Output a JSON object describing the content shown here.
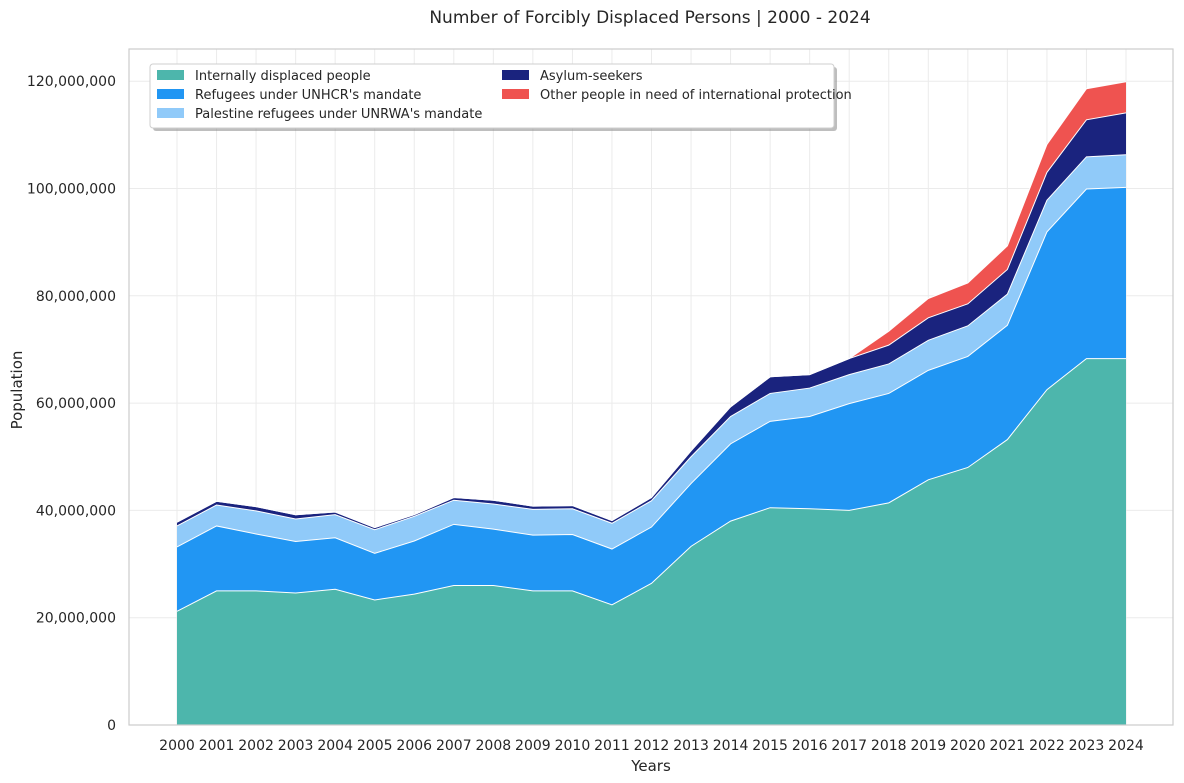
{
  "chart_data": {
    "type": "area",
    "stacked": true,
    "title": "Number of Forcibly Displaced Persons | 2000 - 2024",
    "xlabel": "Years",
    "ylabel": "Population",
    "ylim": [
      0,
      126000000
    ],
    "yticks": [
      0,
      20000000,
      40000000,
      60000000,
      80000000,
      100000000,
      120000000
    ],
    "ytick_labels": [
      "0",
      "20,000,000",
      "40,000,000",
      "60,000,000",
      "80,000,000",
      "100,000,000",
      "120,000,000"
    ],
    "grid": true,
    "legend_position": "top-left",
    "x": [
      "2000",
      "2001",
      "2002",
      "2003",
      "2004",
      "2005",
      "2006",
      "2007",
      "2008",
      "2009",
      "2010",
      "2011",
      "2012",
      "2013",
      "2014",
      "2015",
      "2016",
      "2017",
      "2018",
      "2019",
      "2020",
      "2021",
      "2022",
      "2023",
      "2024"
    ],
    "series": [
      {
        "name": "Internally displaced people",
        "color": "#4DB6AC",
        "values": [
          21200000,
          25000000,
          25000000,
          24600000,
          25300000,
          23300000,
          24400000,
          26000000,
          26000000,
          25000000,
          25000000,
          22400000,
          26400000,
          33300000,
          38000000,
          40500000,
          40300000,
          40000000,
          41400000,
          45700000,
          48000000,
          53200000,
          62500000,
          68300000,
          68300000
        ]
      },
      {
        "name": "Refugees under UNHCR's mandate",
        "color": "#2196F3",
        "values": [
          12000000,
          12100000,
          10600000,
          9600000,
          9600000,
          8700000,
          9900000,
          11400000,
          10500000,
          10400000,
          10500000,
          10400000,
          10500000,
          11700000,
          14400000,
          16100000,
          17200000,
          19900000,
          20400000,
          20400000,
          20700000,
          21300000,
          29400000,
          31600000,
          31900000
        ]
      },
      {
        "name": "Palestine refugees under UNRWA's mandate",
        "color": "#90CAF9",
        "values": [
          3900000,
          3900000,
          4300000,
          4200000,
          4300000,
          4400000,
          4600000,
          4500000,
          4700000,
          4800000,
          4800000,
          4800000,
          4900000,
          5000000,
          5100000,
          5200000,
          5300000,
          5400000,
          5500000,
          5600000,
          5700000,
          5800000,
          5900000,
          6000000,
          6100000
        ]
      },
      {
        "name": "Asylum-seekers",
        "color": "#1A237E",
        "values": [
          700000,
          700000,
          800000,
          800000,
          500000,
          400000,
          300000,
          500000,
          700000,
          600000,
          600000,
          500000,
          600000,
          1100000,
          1800000,
          3100000,
          2500000,
          3000000,
          3500000,
          4200000,
          4100000,
          4600000,
          5200000,
          6900000,
          7800000
        ]
      },
      {
        "name": "Other people in need of international protection",
        "color": "#EF5350",
        "values": [
          0,
          0,
          0,
          0,
          0,
          0,
          0,
          0,
          0,
          0,
          0,
          0,
          0,
          0,
          0,
          0,
          0,
          0,
          2600000,
          3600000,
          3900000,
          4400000,
          5200000,
          5800000,
          5800000
        ]
      }
    ]
  }
}
